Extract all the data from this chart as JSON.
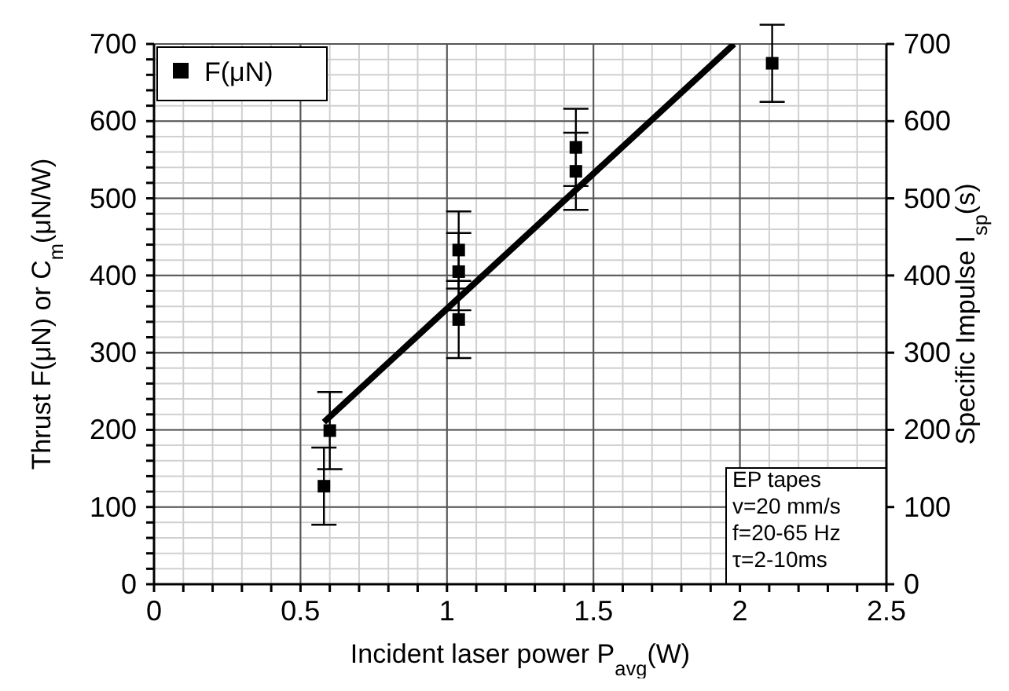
{
  "chart_data": {
    "type": "scatter",
    "xlabel": "Incident laser power P$_{avg}$(W)",
    "ylabel": "Thrust F(μN) or C$_{m}$(μN/W)",
    "y2label": "Specific Impulse I$_{sp}$(s)",
    "annotations": [
      "EP tapes",
      "v=20 mm/s",
      "f=20-65 Hz",
      "τ=2-10ms"
    ],
    "xlim": [
      0,
      2.5
    ],
    "xticks": [
      0,
      {
        "value": 0.1,
        "label": null
      },
      {
        "value": 0.2,
        "label": null
      },
      {
        "value": 0.3,
        "label": null
      },
      {
        "value": 0.4,
        "label": null
      },
      0.5,
      {
        "value": 0.6,
        "label": null
      },
      {
        "value": 0.7,
        "label": null
      },
      {
        "value": 0.8,
        "label": null
      },
      {
        "value": 0.9,
        "label": null
      },
      1,
      {
        "value": 1.1,
        "label": null
      },
      {
        "value": 1.2,
        "label": null
      },
      {
        "value": 1.3,
        "label": null
      },
      {
        "value": 1.4,
        "label": null
      },
      1.5,
      {
        "value": 1.6,
        "label": null
      },
      {
        "value": 1.7,
        "label": null
      },
      {
        "value": 1.8,
        "label": null
      },
      {
        "value": 1.9,
        "label": null
      },
      2,
      {
        "value": 2.1,
        "label": null
      },
      {
        "value": 2.2,
        "label": null
      },
      {
        "value": 2.3,
        "label": null
      },
      {
        "value": 2.4,
        "label": null
      },
      2.5
    ],
    "ylim": [
      0,
      700
    ],
    "yticks": [
      0,
      {
        "value": 20,
        "label": null
      },
      {
        "value": 40,
        "label": null
      },
      {
        "value": 60,
        "label": null
      },
      {
        "value": 80,
        "label": null
      },
      100,
      {
        "value": 120,
        "label": null
      },
      {
        "value": 140,
        "label": null
      },
      {
        "value": 160,
        "label": null
      },
      {
        "value": 180,
        "label": null
      },
      200,
      {
        "value": 220,
        "label": null
      },
      {
        "value": 240,
        "label": null
      },
      {
        "value": 260,
        "label": null
      },
      {
        "value": 280,
        "label": null
      },
      300,
      {
        "value": 320,
        "label": null
      },
      {
        "value": 340,
        "label": null
      },
      {
        "value": 360,
        "label": null
      },
      {
        "value": 380,
        "label": null
      },
      400,
      {
        "value": 420,
        "label": null
      },
      {
        "value": 440,
        "label": null
      },
      {
        "value": 460,
        "label": null
      },
      {
        "value": 480,
        "label": null
      },
      500,
      {
        "value": 520,
        "label": null
      },
      {
        "value": 540,
        "label": null
      },
      {
        "value": 560,
        "label": null
      },
      {
        "value": 580,
        "label": null
      },
      600,
      {
        "value": 620,
        "label": null
      },
      {
        "value": 640,
        "label": null
      },
      {
        "value": 660,
        "label": null
      },
      {
        "value": 680,
        "label": null
      },
      700
    ],
    "y2lim": [
      0,
      700
    ],
    "y2ticks": [
      0,
      100,
      200,
      300,
      400,
      500,
      600,
      700
    ],
    "grid": true,
    "legend": "top left",
    "marker": "square",
    "series": [
      {
        "name": "F(μN)",
        "color": "#000000",
        "x": [
          0.58,
          0.6,
          1.04,
          1.04,
          1.04,
          1.44,
          1.44,
          2.11
        ],
        "values": [
          127,
          199,
          433,
          405,
          343,
          566,
          535,
          675
        ],
        "errors": [
          50,
          50,
          50,
          50,
          50,
          50,
          50,
          50
        ]
      },
      {
        "type": "line",
        "color": "#000000",
        "line_style": "solid",
        "marker": "none",
        "x": [
          0.58,
          1.98
        ],
        "values": [
          210,
          700
        ]
      }
    ]
  }
}
